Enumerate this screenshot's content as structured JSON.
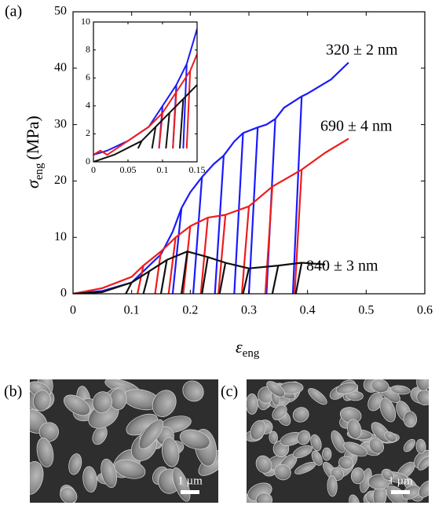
{
  "chart_data": [
    {
      "type": "line",
      "panel_label": "(a)",
      "x_label": {
        "symbol": "ε",
        "subscript": "eng"
      },
      "y_label": {
        "symbol": "σ",
        "subscript": "eng",
        "unit": "(MPa)"
      },
      "xlim": [
        0,
        0.6
      ],
      "ylim": [
        0,
        50
      ],
      "xticks": [
        0,
        0.1,
        0.2,
        0.3,
        0.4,
        0.5,
        0.6
      ],
      "yticks": [
        0,
        10,
        20,
        30,
        40,
        50
      ],
      "series": [
        {
          "name": "320 ± 2 nm",
          "color": "#1a1aff",
          "x": [
            0,
            0.05,
            0.1,
            0.12,
            0.15,
            0.17,
            0.185,
            0.17,
            0.185,
            0.2,
            0.22,
            0.205,
            0.22,
            0.24,
            0.257,
            0.242,
            0.257,
            0.275,
            0.29,
            0.275,
            0.29,
            0.315,
            0.3,
            0.315,
            0.33,
            0.345,
            0.33,
            0.345,
            0.36,
            0.39,
            0.375,
            0.39,
            0.4,
            0.44,
            0.47
          ],
          "y": [
            0,
            0.5,
            2,
            4,
            7,
            11,
            15.2,
            0,
            15.2,
            18,
            20.7,
            0,
            20.7,
            23,
            24.5,
            0,
            24.5,
            27,
            28.5,
            0,
            28.5,
            29.5,
            0,
            29.5,
            30,
            31,
            0,
            31,
            33,
            35,
            0,
            35,
            35.5,
            38,
            41
          ]
        },
        {
          "name": "690 ± 4 nm",
          "color": "#ee1c1c",
          "x": [
            0,
            0.05,
            0.1,
            0.12,
            0.11,
            0.12,
            0.15,
            0.14,
            0.15,
            0.175,
            0.163,
            0.175,
            0.2,
            0.188,
            0.2,
            0.23,
            0.218,
            0.23,
            0.26,
            0.248,
            0.26,
            0.3,
            0.288,
            0.3,
            0.34,
            0.328,
            0.34,
            0.39,
            0.378,
            0.39,
            0.43,
            0.47
          ],
          "y": [
            0,
            1,
            3,
            5,
            0,
            5,
            7.5,
            0,
            7.5,
            10,
            0,
            10,
            12,
            0,
            12,
            13.5,
            0,
            13.5,
            14,
            0,
            14,
            15.5,
            0,
            15.5,
            19,
            0,
            19,
            22,
            0,
            22,
            25,
            27.5
          ]
        },
        {
          "name": "840 ± 3 nm",
          "color": "#111111",
          "x": [
            0,
            0.05,
            0.1,
            0.09,
            0.1,
            0.13,
            0.12,
            0.13,
            0.16,
            0.15,
            0.16,
            0.195,
            0.185,
            0.195,
            0.23,
            0.22,
            0.23,
            0.26,
            0.25,
            0.26,
            0.3,
            0.29,
            0.3,
            0.35,
            0.34,
            0.35,
            0.39,
            0.38,
            0.39,
            0.43
          ],
          "y": [
            0,
            0.3,
            2,
            0,
            2,
            4,
            0,
            4,
            6,
            0,
            6,
            7.5,
            0,
            7.5,
            6.5,
            0,
            6.5,
            5.5,
            0,
            5.5,
            4.5,
            0,
            4.5,
            5,
            0,
            5,
            5.5,
            0,
            5.5,
            5.2
          ]
        }
      ]
    },
    {
      "type": "line",
      "xlim": [
        0,
        0.15
      ],
      "ylim": [
        0,
        10
      ],
      "xticks": [
        0,
        0.05,
        0.1,
        0.15
      ],
      "yticks": [
        0,
        2,
        4,
        6,
        8,
        10
      ],
      "series": [
        {
          "color": "#1a1aff",
          "x": [
            0,
            0.02,
            0.05,
            0.08,
            0.1,
            0.095,
            0.1,
            0.12,
            0.115,
            0.12,
            0.135,
            0.13,
            0.135,
            0.15
          ],
          "y": [
            0.5,
            0.8,
            1.5,
            2.5,
            4,
            1,
            4,
            5.5,
            1,
            5.5,
            7,
            1,
            7,
            9.5
          ]
        },
        {
          "color": "#ee1c1c",
          "x": [
            0,
            0.01,
            0.02,
            0.05,
            0.08,
            0.1,
            0.095,
            0.1,
            0.12,
            0.115,
            0.12,
            0.14,
            0.135,
            0.14,
            0.15
          ],
          "y": [
            0.5,
            0.8,
            0.5,
            1.5,
            2.5,
            3.5,
            1,
            3.5,
            5,
            1,
            5,
            6.5,
            1,
            6.5,
            7.7
          ]
        },
        {
          "color": "#111111",
          "x": [
            0,
            0.03,
            0.05,
            0.07,
            0.065,
            0.07,
            0.09,
            0.085,
            0.09,
            0.11,
            0.105,
            0.11,
            0.13,
            0.125,
            0.13,
            0.15
          ],
          "y": [
            0,
            0.5,
            1,
            1.5,
            1,
            1.5,
            2.5,
            1,
            2.5,
            3.5,
            1,
            3.5,
            4.5,
            1,
            4.5,
            5.5
          ]
        }
      ]
    }
  ],
  "figure": {
    "panels": [
      {
        "label": "(b)",
        "scale_bar": "1 µm"
      },
      {
        "label": "(c)",
        "scale_bar": "1 µm"
      }
    ]
  }
}
